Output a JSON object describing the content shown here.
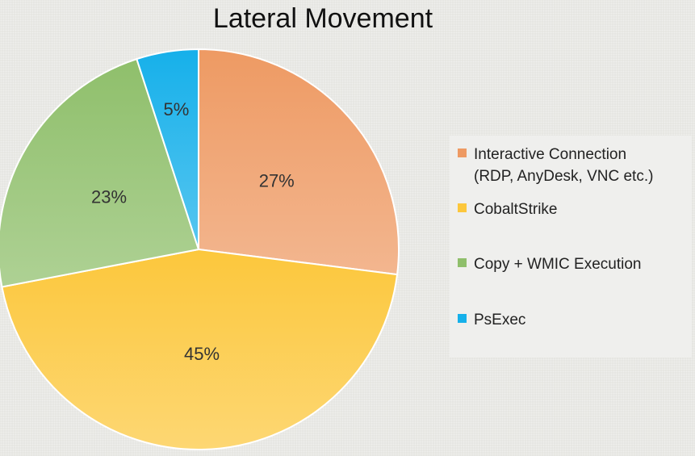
{
  "chart_data": {
    "type": "pie",
    "title": "Lateral Movement",
    "slices": [
      {
        "label": "Interactive Connection\n(RDP, AnyDesk, VNC etc.)",
        "value": 27,
        "display": "27%",
        "color": "#ee9a63"
      },
      {
        "label": "CobaltStrike",
        "value": 45,
        "display": "45%",
        "color": "#fcc73c"
      },
      {
        "label": "Copy + WMIC Execution",
        "value": 23,
        "display": "23%",
        "color": "#8fbf6b"
      },
      {
        "label": "PsExec",
        "value": 5,
        "display": "5%",
        "color": "#16b0ea"
      }
    ],
    "legend_position": "right"
  }
}
